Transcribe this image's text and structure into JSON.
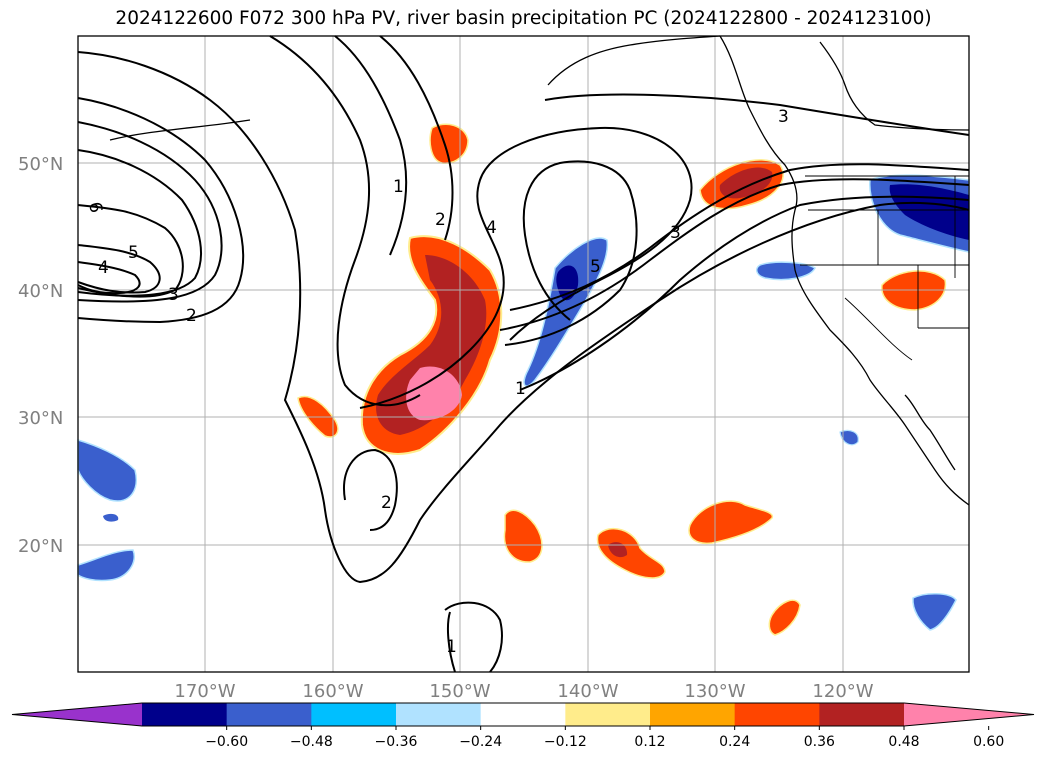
{
  "title": "2024122600 F072 300 hPa PV, river basin precipitation PC (2024122800 - 2024123100)",
  "lat_labels": [
    "50°N",
    "40°N",
    "30°N",
    "20°N"
  ],
  "lon_labels": [
    "170°W",
    "160°W",
    "150°W",
    "140°W",
    "130°W",
    "120°W"
  ],
  "contour_labels": [
    "6",
    "5",
    "4",
    "3",
    "2",
    "1",
    "2",
    "4",
    "5",
    "3",
    "3",
    "1",
    "2",
    "1"
  ],
  "colorbar": {
    "ticks": [
      "−0.60",
      "−0.48",
      "−0.36",
      "−0.24",
      "−0.12",
      "0.12",
      "0.24",
      "0.36",
      "0.48",
      "0.60"
    ],
    "colors": [
      "#9932cc",
      "#00008b",
      "#3a5fcd",
      "#00bfff",
      "#b0e2ff",
      "#ffffff",
      "#ffec8b",
      "#ffa500",
      "#ff4500",
      "#b22222",
      "#ff82ab"
    ]
  }
}
